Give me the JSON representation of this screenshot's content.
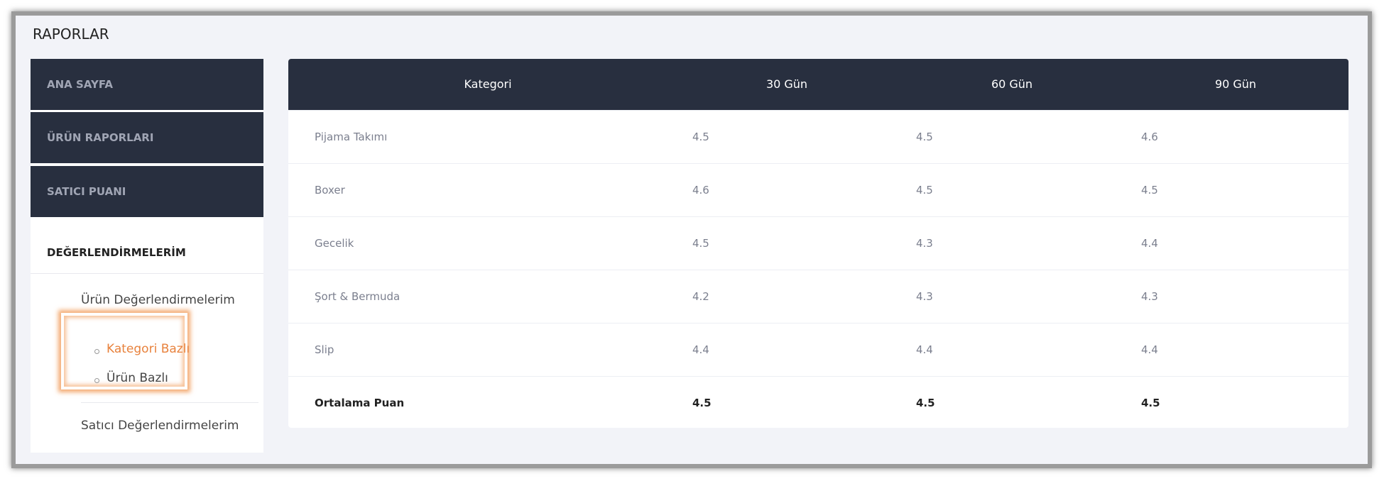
{
  "header": {
    "title": "RAPORLAR"
  },
  "sidebar": {
    "menu": [
      "ANA SAYFA",
      "ÜRÜN RAPORLARI",
      "SATICI PUANI"
    ],
    "section_title": "DEĞERLENDİRMELERİM",
    "group_title": "Ürün Değerlendirmelerim",
    "submenu": [
      "Kategori Bazlı",
      "Ürün Bazlı"
    ],
    "other": "Satıcı Değerlendirmelerim"
  },
  "table": {
    "columns": [
      "Kategori",
      "30 Gün",
      "60 Gün",
      "90 Gün"
    ],
    "rows": [
      [
        "Pijama Takımı",
        4.5,
        4.5,
        4.6
      ],
      [
        "Boxer",
        4.6,
        4.5,
        4.5
      ],
      [
        "Gecelik",
        4.5,
        4.3,
        4.4
      ],
      [
        "Şort & Bermuda",
        4.2,
        4.3,
        4.3
      ],
      [
        "Slip",
        4.4,
        4.4,
        4.4
      ]
    ],
    "footer": [
      "Ortalama Puan",
      4.5,
      4.5,
      4.5
    ]
  }
}
